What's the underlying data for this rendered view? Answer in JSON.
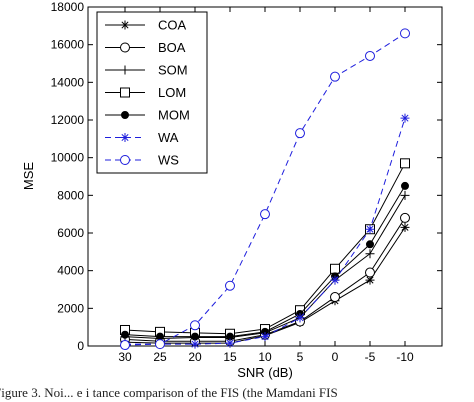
{
  "caption": "Figure 3.  Noi... e  i  tance comparison of the FIS  (the Mamdani FIS",
  "chart_data": {
    "type": "line",
    "xlabel": "SNR (dB)",
    "ylabel": "MSE",
    "categories": [
      "30",
      "25",
      "20",
      "15",
      "10",
      "5",
      "0",
      "-5",
      "-10"
    ],
    "ylim": [
      0,
      18000
    ],
    "yticks": [
      0,
      2000,
      4000,
      6000,
      8000,
      10000,
      12000,
      14000,
      16000,
      18000
    ],
    "grid": false,
    "legend_position": "top-left",
    "series": [
      {
        "name": "COA",
        "color": "#000000",
        "dashed": false,
        "marker": "asterisk",
        "values": [
          200,
          150,
          150,
          150,
          550,
          1250,
          2400,
          3500,
          6300
        ]
      },
      {
        "name": "BOA",
        "color": "#000000",
        "dashed": false,
        "marker": "circle",
        "values": [
          350,
          250,
          250,
          250,
          600,
          1300,
          2600,
          3900,
          6800
        ]
      },
      {
        "name": "SOM",
        "color": "#000000",
        "dashed": false,
        "marker": "plus",
        "values": [
          500,
          400,
          450,
          450,
          700,
          1500,
          3500,
          4900,
          8000
        ]
      },
      {
        "name": "LOM",
        "color": "#000000",
        "dashed": false,
        "marker": "square",
        "values": [
          850,
          750,
          700,
          650,
          900,
          1900,
          4100,
          6200,
          9700
        ]
      },
      {
        "name": "MOM",
        "color": "#000000",
        "dashed": false,
        "marker": "dot",
        "values": [
          600,
          500,
          500,
          500,
          750,
          1700,
          3700,
          5400,
          8500
        ]
      },
      {
        "name": "WA",
        "color": "#1f1fdd",
        "dashed": true,
        "marker": "asterisk",
        "values": [
          100,
          100,
          100,
          150,
          500,
          1500,
          3500,
          6200,
          12100
        ]
      },
      {
        "name": "WS",
        "color": "#1f1fdd",
        "dashed": true,
        "marker": "circle",
        "values": [
          50,
          100,
          1100,
          3200,
          7000,
          11300,
          14300,
          15400,
          16600
        ]
      }
    ]
  }
}
